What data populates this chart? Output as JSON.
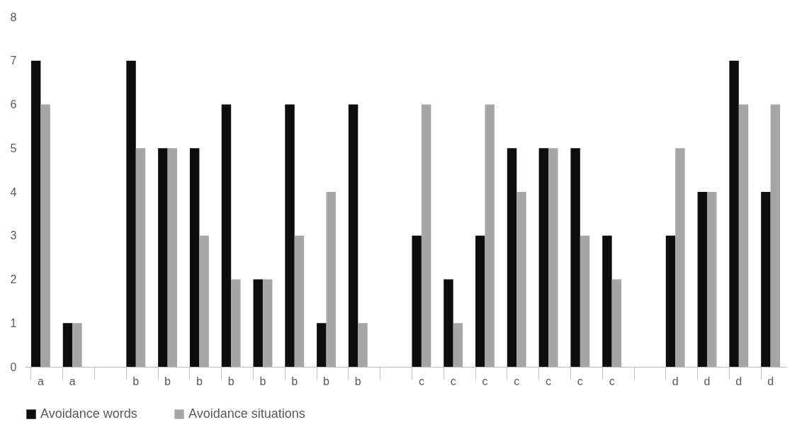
{
  "chart_data": {
    "type": "bar",
    "categories": [
      "a",
      "a",
      null,
      "b",
      "b",
      "b",
      "b",
      "b",
      "b",
      "b",
      "b",
      null,
      "c",
      "c",
      "c",
      "c",
      "c",
      "c",
      "c",
      null,
      "d",
      "d",
      "d",
      "d"
    ],
    "series": [
      {
        "name": "Avoidance words",
        "color": "#0d0d0d",
        "values": [
          7,
          1,
          null,
          7,
          5,
          5,
          6,
          2,
          6,
          1,
          6,
          null,
          3,
          2,
          3,
          5,
          5,
          5,
          3,
          null,
          3,
          4,
          7,
          4
        ]
      },
      {
        "name": "Avoidance situations",
        "color": "#a6a6a6",
        "values": [
          6,
          1,
          null,
          5,
          5,
          3,
          2,
          2,
          3,
          4,
          1,
          null,
          6,
          1,
          6,
          4,
          5,
          3,
          2,
          null,
          5,
          4,
          6,
          6
        ]
      }
    ],
    "ylim": [
      0,
      8
    ],
    "yticks": [
      0,
      1,
      2,
      3,
      4,
      5,
      6,
      7,
      8
    ],
    "grid": false,
    "legend": "bottom"
  }
}
